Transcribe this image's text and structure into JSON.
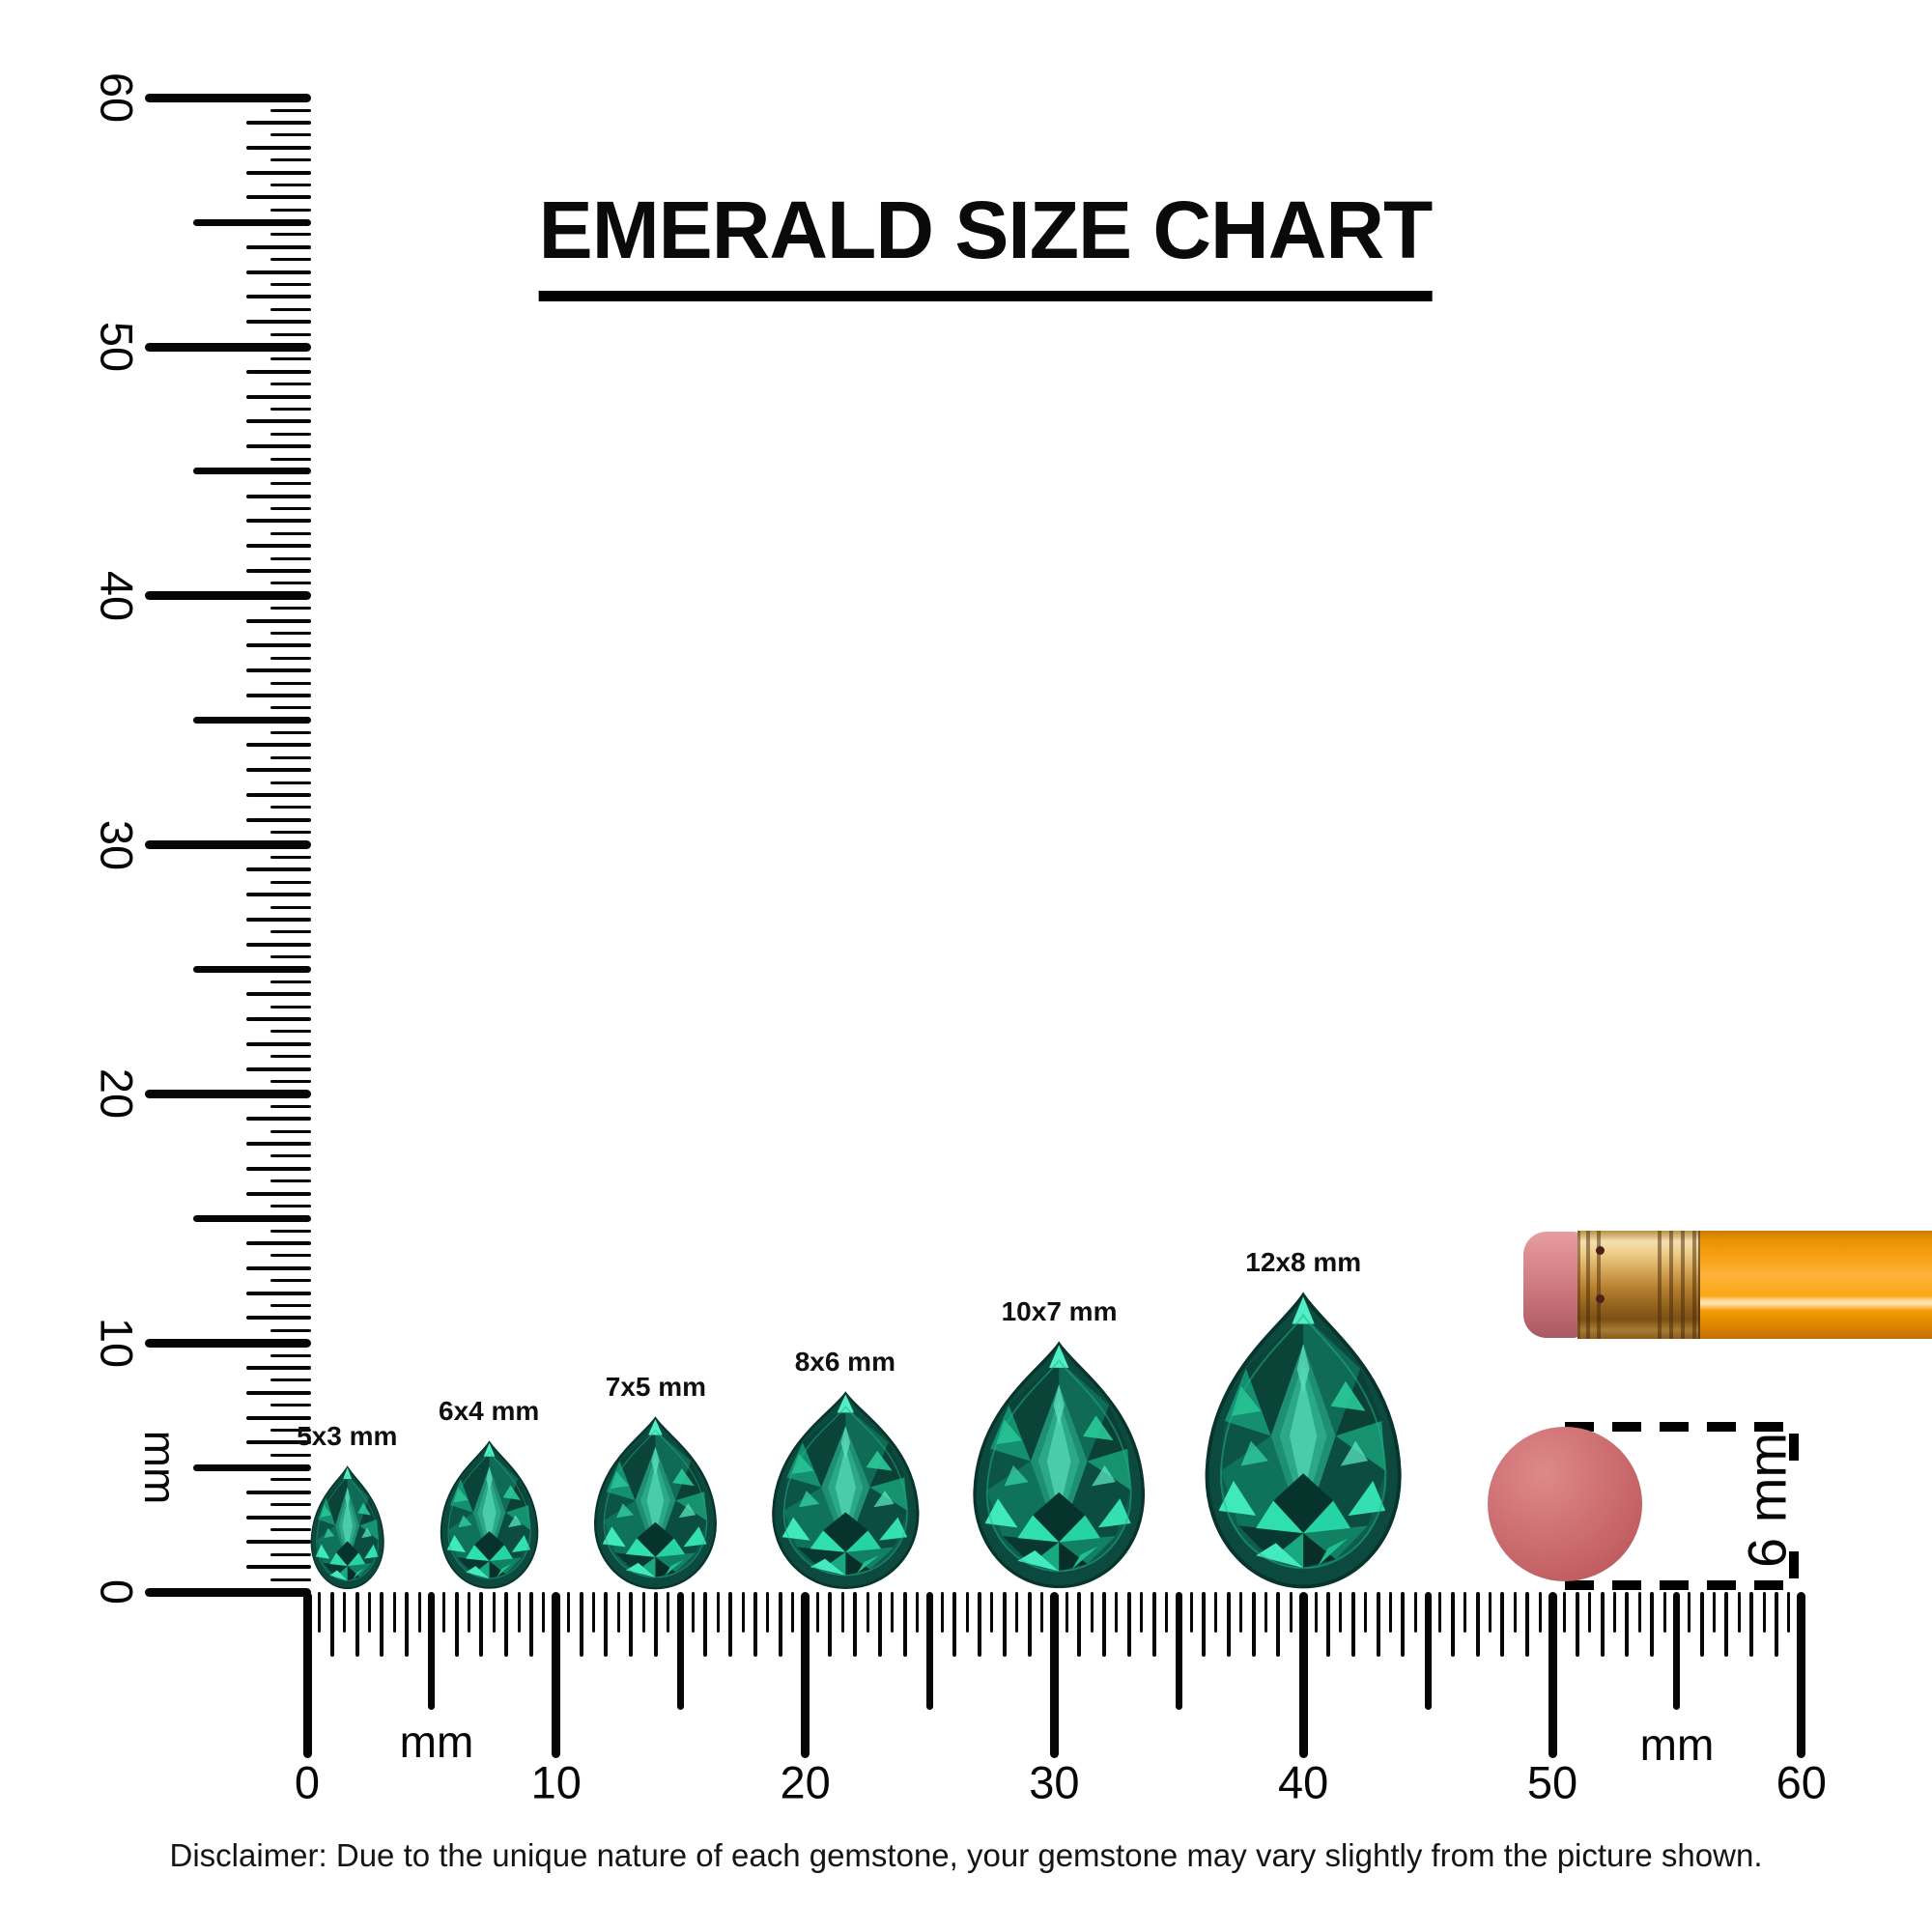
{
  "title": "EMERALD SIZE CHART",
  "disclaimer": "Disclaimer: Due to the unique nature of each gemstone, your gemstone may vary slightly from the picture shown.",
  "rulers": {
    "unit_label": "mm",
    "vertical_major_labels": [
      "0",
      "10",
      "20",
      "30",
      "40",
      "50",
      "60"
    ],
    "horizontal_major_labels": [
      "0",
      "10",
      "20",
      "30",
      "40",
      "50",
      "60"
    ]
  },
  "gems": [
    {
      "label": "5x3 mm",
      "length_mm": 5,
      "width_mm": 3,
      "center_mm": 1.6
    },
    {
      "label": "6x4 mm",
      "length_mm": 6,
      "width_mm": 4,
      "center_mm": 7.3
    },
    {
      "label": "7x5 mm",
      "length_mm": 7,
      "width_mm": 5,
      "center_mm": 14.0
    },
    {
      "label": "8x6 mm",
      "length_mm": 8,
      "width_mm": 6,
      "center_mm": 21.6
    },
    {
      "label": "10x7 mm",
      "length_mm": 10,
      "width_mm": 7,
      "center_mm": 30.2
    },
    {
      "label": "12x8 mm",
      "length_mm": 12,
      "width_mm": 8,
      "center_mm": 40.0
    }
  ],
  "scale_reference": {
    "circle_label": "6 mm",
    "circle_diameter_mm": 6
  },
  "colors": {
    "ink": "#060606",
    "emerald_dark": "#0c4a3f",
    "emerald_mid": "#11735d",
    "emerald_light": "#2ba78a",
    "emerald_flash": "#49ecc1",
    "eraser_pink": "#d07c82",
    "scale_circle_pink": "#c66467",
    "ferrule_gold": "#d8a85b",
    "pencil_orange": "#f8a112"
  },
  "chart_data": {
    "type": "table",
    "title": "EMERALD SIZE CHART",
    "description": "Pear-cut emerald gemstones shown at actual size against millimeter rulers",
    "categories": [
      "5x3 mm",
      "6x4 mm",
      "7x5 mm",
      "8x6 mm",
      "10x7 mm",
      "12x8 mm"
    ],
    "series": [
      {
        "name": "length_mm",
        "values": [
          5,
          6,
          7,
          8,
          10,
          12
        ]
      },
      {
        "name": "width_mm",
        "values": [
          3,
          4,
          5,
          6,
          7,
          8
        ]
      }
    ],
    "xlabel": "mm",
    "ylabel": "mm",
    "x_axis_ticks": [
      0,
      10,
      20,
      30,
      40,
      50,
      60
    ],
    "y_axis_ticks": [
      0,
      10,
      20,
      30,
      40,
      50,
      60
    ],
    "annotations": [
      "6 mm pencil eraser shown for scale"
    ]
  }
}
